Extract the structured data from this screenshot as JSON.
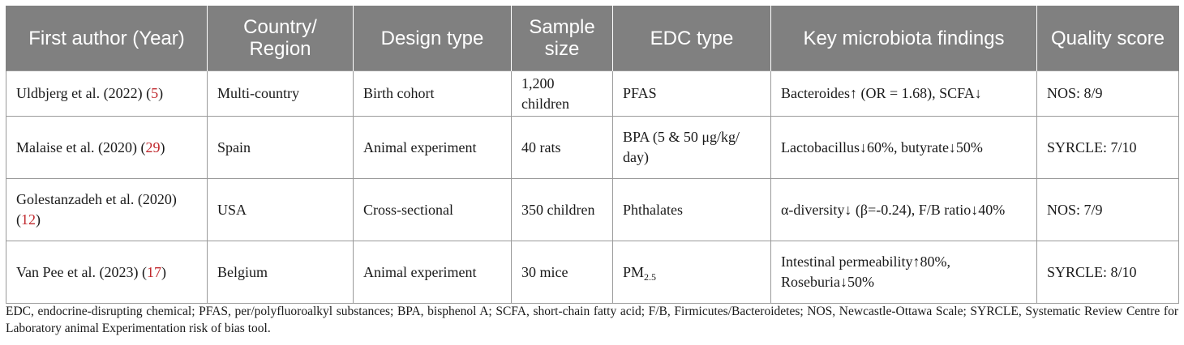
{
  "table": {
    "headers": [
      "First author (Year)",
      "Country/ Region",
      "Design type",
      "Sample size",
      "EDC type",
      "Key microbiota findings",
      "Quality score"
    ],
    "rows": [
      {
        "author": "Uldbjerg et al. (2022) (",
        "ref": "5",
        "author_end": ")",
        "country": "Multi-country",
        "design": "Birth cohort",
        "sample": "1,200 children",
        "edc": "PFAS",
        "findings": "Bacteroides↑ (OR = 1.68), SCFA↓",
        "quality": "NOS: 8/9"
      },
      {
        "author": "Malaise et al. (2020) (",
        "ref": "29",
        "author_end": ")",
        "country": "Spain",
        "design": "Animal experiment",
        "sample": "40 rats",
        "edc": "BPA (5 & 50 μg/kg/ day)",
        "findings": "Lactobacillus↓60%, butyrate↓50%",
        "quality": "SYRCLE: 7/10"
      },
      {
        "author": "Golestanzadeh et al. (2020) (",
        "ref": "12",
        "author_end": ")",
        "country": "USA",
        "design": "Cross-sectional",
        "sample": "350 children",
        "edc": "Phthalates",
        "findings": "α-diversity↓ (β=-0.24), F/B ratio↓40%",
        "quality": "NOS: 7/9"
      },
      {
        "author": "Van Pee et al. (2023) (",
        "ref": "17",
        "author_end": ")",
        "country": "Belgium",
        "design": "Animal experiment",
        "sample": "30 mice",
        "edc": "PM",
        "edc_sub": "2.5",
        "findings": "Intestinal permeability↑80%, Roseburia↓50%",
        "quality": "SYRCLE: 8/10"
      }
    ]
  },
  "footnote": "EDC, endocrine-disrupting chemical; PFAS, per/polyfluoroalkyl substances; BPA, bisphenol A; SCFA, short-chain fatty acid; F/B, Firmicutes/Bacteroidetes; NOS, Newcastle-Ottawa Scale; SYRCLE, Systematic Review Centre for Laboratory animal Experimentation risk of bias tool.",
  "colors": {
    "header_bg": "#808080",
    "header_text": "#ffffff",
    "ref_link": "#c0282d"
  }
}
